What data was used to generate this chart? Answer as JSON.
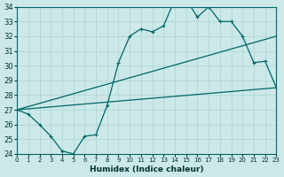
{
  "xlabel": "Humidex (Indice chaleur)",
  "background_color": "#cce8e8",
  "grid_color": "#aad4d4",
  "line_color": "#006666",
  "xlim": [
    0,
    23
  ],
  "ylim": [
    24,
    34
  ],
  "xticks": [
    0,
    1,
    2,
    3,
    4,
    5,
    6,
    7,
    8,
    9,
    10,
    11,
    12,
    13,
    14,
    15,
    16,
    17,
    18,
    19,
    20,
    21,
    22,
    23
  ],
  "yticks": [
    24,
    25,
    26,
    27,
    28,
    29,
    30,
    31,
    32,
    33,
    34
  ],
  "line1_x": [
    0,
    1,
    2,
    3,
    4,
    5,
    6,
    7,
    8,
    9,
    10,
    11,
    12,
    13,
    14,
    15,
    16,
    17,
    18,
    19,
    20,
    21,
    22,
    23
  ],
  "line1_y": [
    27.0,
    26.7,
    26.0,
    25.2,
    24.2,
    24.0,
    25.2,
    25.3,
    27.3,
    30.2,
    32.0,
    32.5,
    32.3,
    32.7,
    34.5,
    34.5,
    33.3,
    34.0,
    33.0,
    33.0,
    32.0,
    30.2,
    30.3,
    28.5
  ],
  "line2_x": [
    0,
    23
  ],
  "line2_y": [
    27.0,
    32.0
  ],
  "line3_x": [
    0,
    23
  ],
  "line3_y": [
    27.0,
    28.5
  ],
  "xlabel_fontsize": 6.5,
  "xlabel_color": "#003333"
}
